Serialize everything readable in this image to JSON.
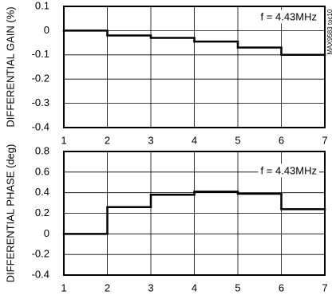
{
  "chart_data": [
    {
      "type": "step",
      "y_label": "DIFFERENTIAL GAIN (%)",
      "annotation": "f = 4.43MHz",
      "side_label": "MAX9583 toc10",
      "x": [
        1,
        2,
        3,
        4,
        5,
        6
      ],
      "values": [
        0,
        -0.02,
        -0.03,
        -0.045,
        -0.07,
        -0.1
      ],
      "color": "#000000",
      "xlim": [
        1,
        7
      ],
      "xticks": [
        1,
        2,
        3,
        4,
        5,
        6,
        7
      ],
      "ylim": [
        -0.4,
        0.1
      ],
      "yticks": [
        0.1,
        0,
        -0.1,
        -0.2,
        -0.3,
        -0.4
      ],
      "grid": true
    },
    {
      "type": "step",
      "y_label": "DIFFERENTIAL PHASE (deg)",
      "annotation": "f = 4.43MHz",
      "x": [
        1,
        2,
        3,
        4,
        5,
        6
      ],
      "values": [
        0,
        0.26,
        0.38,
        0.41,
        0.39,
        0.24
      ],
      "color": "#000000",
      "xlim": [
        1,
        7
      ],
      "xticks": [
        1,
        2,
        3,
        4,
        5,
        6,
        7
      ],
      "ylim": [
        -0.4,
        0.8
      ],
      "yticks": [
        0.8,
        0.6,
        0.4,
        0.2,
        0,
        -0.2,
        -0.4
      ],
      "grid": true
    }
  ]
}
